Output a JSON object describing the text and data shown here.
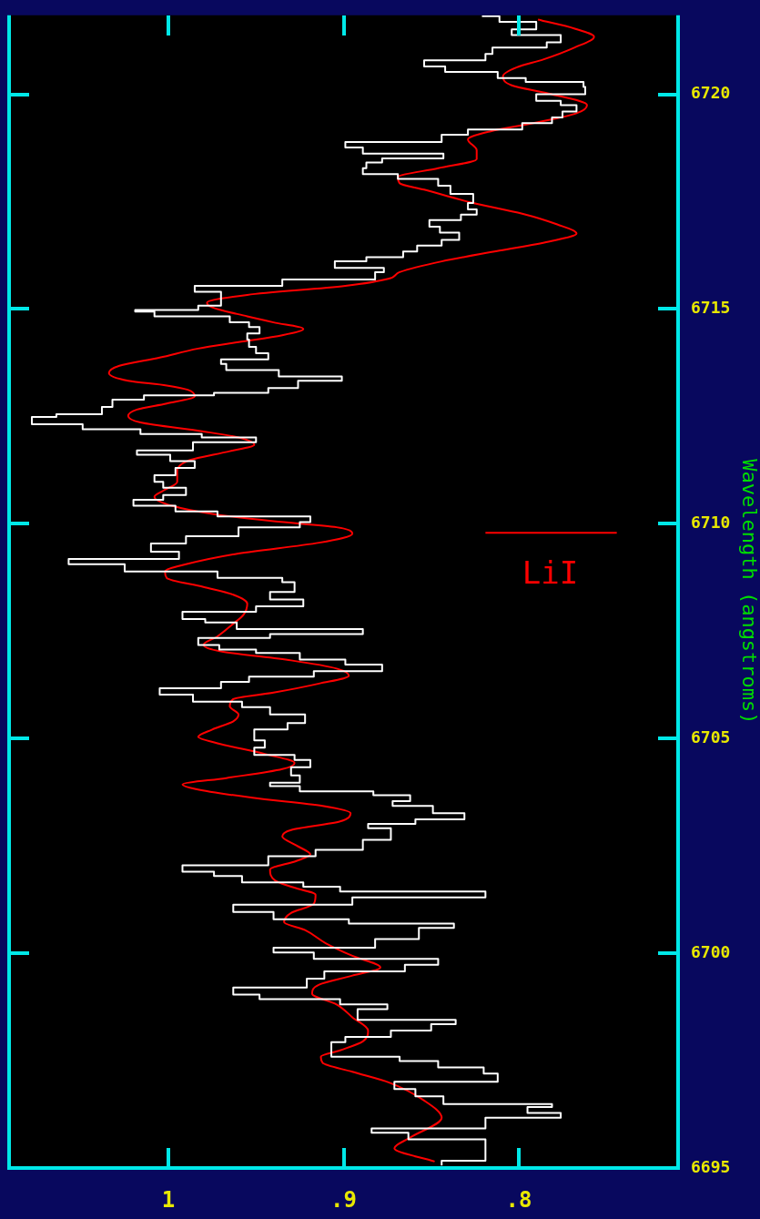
{
  "chart_data": {
    "type": "line",
    "ylabel": "Wavelength (angstroms)",
    "ylim": [
      6695,
      6721.84
    ],
    "yticks": [
      6695,
      6700,
      6705,
      6710,
      6715,
      6720
    ],
    "xlim": [
      1.091,
      0.709
    ],
    "xticks": [
      1,
      {
        "value": 0.9,
        "label": ".9"
      },
      {
        "value": 0.8,
        "label": ".8"
      }
    ],
    "annotations": [
      {
        "text": "LiI",
        "x": 0.782,
        "y": 6709.79
      }
    ],
    "series": [
      {
        "type": "step",
        "color": "#ffffff",
        "values": [
          6695.06,
          6695.17,
          6695.5,
          6695.67,
          6695.82,
          6695.92,
          6696.17,
          6696.28,
          6696.42,
          6696.49,
          6696.67,
          6696.84,
          6697.01,
          6697.2,
          6697.34,
          6697.49,
          6697.59,
          6697.93,
          6698.05,
          6698.2,
          6698.35,
          6698.45,
          6698.7,
          6698.81,
          6698.93,
          6699.04,
          6699.2,
          6699.41,
          6699.58,
          6699.73,
          6699.87,
          6700.02,
          6700.13,
          6700.33,
          6700.59,
          6700.69,
          6700.79,
          6700.96,
          6701.13,
          6701.3,
          6701.44,
          6701.55,
          6701.65,
          6701.8,
          6701.9,
          6702.05,
          6702.26,
          6702.41,
          6702.64,
          6702.91,
          6703.01,
          6703.12,
          6703.26,
          6703.43,
          6703.54,
          6703.68,
          6703.77,
          6703.89,
          6703.97,
          6704.14,
          6704.33,
          6704.5,
          6704.62,
          6704.79,
          6704.96,
          6705.21,
          6705.36,
          6705.56,
          6705.73,
          6705.86,
          6706.02,
          6706.17,
          6706.32,
          6706.44,
          6706.57,
          6706.72,
          6706.84,
          6706.99,
          6707.07,
          6707.18,
          6707.34,
          6707.43,
          6707.55,
          6707.7,
          6707.78,
          6707.95,
          6708.08,
          6708.24,
          6708.41,
          6708.64,
          6708.74,
          6708.89,
          6709.06,
          6709.18,
          6709.35,
          6709.54,
          6709.71,
          6709.92,
          6710.04,
          6710.17,
          6710.29,
          6710.42,
          6710.56,
          6710.67,
          6710.84,
          6710.98,
          6711.13,
          6711.3,
          6711.46,
          6711.61,
          6711.71,
          6711.9,
          6712.01,
          6712.09,
          6712.2,
          6712.32,
          6712.49,
          6712.55,
          6712.72,
          6712.89,
          6712.99,
          6713.05,
          6713.16,
          6713.33,
          6713.43,
          6713.58,
          6713.72,
          6713.83,
          6713.97,
          6714.12,
          6714.29,
          6714.43,
          6714.58,
          6714.69,
          6714.83,
          6714.94,
          6714.98,
          6715.08,
          6715.23,
          6715.4,
          6715.54,
          6715.69,
          6715.86,
          6715.96,
          6716.11,
          6716.21,
          6716.34,
          6716.48,
          6716.61,
          6716.78,
          6716.92,
          6717.07,
          6717.2,
          6717.32,
          6717.47,
          6717.68,
          6717.87,
          6718.03,
          6718.14,
          6718.28,
          6718.41,
          6718.51,
          6718.62,
          6718.76,
          6718.89,
          6719.06,
          6719.18,
          6719.33,
          6719.46,
          6719.6,
          6719.75,
          6719.85,
          6720.0,
          6720.17,
          6720.29,
          6720.38,
          6720.52,
          6720.65,
          6720.79,
          6720.94,
          6721.09,
          6721.21,
          6721.38,
          6721.51,
          6721.69,
          6721.82
        ],
        "x": [
          0.844,
          0.819,
          0.819,
          0.863,
          0.884,
          0.819,
          0.776,
          0.795,
          0.781,
          0.843,
          0.859,
          0.871,
          0.812,
          0.82,
          0.846,
          0.868,
          0.907,
          0.899,
          0.873,
          0.85,
          0.836,
          0.892,
          0.875,
          0.902,
          0.948,
          0.963,
          0.921,
          0.911,
          0.865,
          0.846,
          0.917,
          0.94,
          0.882,
          0.857,
          0.837,
          0.897,
          0.94,
          0.963,
          0.895,
          0.819,
          0.902,
          0.923,
          0.958,
          0.974,
          0.992,
          0.943,
          0.916,
          0.889,
          0.873,
          0.886,
          0.859,
          0.831,
          0.849,
          0.872,
          0.862,
          0.883,
          0.925,
          0.942,
          0.925,
          0.93,
          0.919,
          0.928,
          0.951,
          0.945,
          0.951,
          0.932,
          0.922,
          0.942,
          0.958,
          0.986,
          1.005,
          0.97,
          0.954,
          0.917,
          0.878,
          0.899,
          0.925,
          0.95,
          0.971,
          0.983,
          0.942,
          0.889,
          0.961,
          0.979,
          0.992,
          0.95,
          0.923,
          0.942,
          0.928,
          0.935,
          0.972,
          1.025,
          1.057,
          0.994,
          1.01,
          0.99,
          0.96,
          0.925,
          0.919,
          0.972,
          0.996,
          1.02,
          1.003,
          0.99,
          1.003,
          1.008,
          0.996,
          0.985,
          0.999,
          1.018,
          0.986,
          0.95,
          0.981,
          1.016,
          1.049,
          1.078,
          1.064,
          1.038,
          1.032,
          1.014,
          0.974,
          0.943,
          0.926,
          0.901,
          0.937,
          0.967,
          0.97,
          0.943,
          0.95,
          0.954,
          0.955,
          0.948,
          0.954,
          0.965,
          1.008,
          1.019,
          0.983,
          0.97,
          0.97,
          0.985,
          0.935,
          0.882,
          0.877,
          0.905,
          0.887,
          0.866,
          0.858,
          0.844,
          0.834,
          0.845,
          0.851,
          0.833,
          0.824,
          0.829,
          0.826,
          0.839,
          0.846,
          0.869,
          0.889,
          0.887,
          0.878,
          0.843,
          0.889,
          0.899,
          0.844,
          0.829,
          0.798,
          0.781,
          0.775,
          0.767,
          0.776,
          0.79,
          0.762,
          0.763,
          0.796,
          0.812,
          0.842,
          0.854,
          0.819,
          0.815,
          0.784,
          0.776,
          0.804,
          0.79,
          0.811,
          0.821
        ]
      },
      {
        "type": "line",
        "color": "#ff0000",
        "values": [
          6695.15,
          6695.46,
          6695.71,
          6696.17,
          6696.57,
          6696.99,
          6697.24,
          6697.45,
          6697.59,
          6697.74,
          6697.95,
          6698.2,
          6698.51,
          6698.81,
          6699.06,
          6699.27,
          6699.48,
          6699.67,
          6699.94,
          6700.23,
          6700.54,
          6700.73,
          6700.94,
          6701.15,
          6701.36,
          6701.55,
          6701.69,
          6701.95,
          6702.15,
          6702.3,
          6702.51,
          6702.72,
          6702.87,
          6703.07,
          6703.26,
          6703.43,
          6703.62,
          6703.83,
          6703.93,
          6704.08,
          6704.29,
          6704.43,
          6704.64,
          6704.89,
          6705.04,
          6705.21,
          6705.4,
          6705.56,
          6705.75,
          6705.92,
          6706.07,
          6706.28,
          6706.46,
          6706.63,
          6706.82,
          6707.03,
          6707.18,
          6707.38,
          6707.64,
          6707.89,
          6708.14,
          6708.35,
          6708.53,
          6708.74,
          6708.89,
          6709.06,
          6709.31,
          6709.56,
          6709.77,
          6709.92,
          6710.06,
          6710.23,
          6710.42,
          6710.63,
          6710.77,
          6710.98,
          6711.23,
          6711.48,
          6711.69,
          6711.84,
          6712.01,
          6712.15,
          6712.36,
          6712.51,
          6712.66,
          6712.8,
          6712.97,
          6713.12,
          6713.22,
          6713.33,
          6713.51,
          6713.68,
          6713.87,
          6714.08,
          6714.23,
          6714.39,
          6714.54,
          6714.69,
          6714.83,
          6715.04,
          6715.15,
          6715.33,
          6715.54,
          6715.71,
          6715.86,
          6716.11,
          6716.36,
          6716.57,
          6716.76,
          6716.97,
          6717.22,
          6717.47,
          6717.78,
          6717.93,
          6718.07,
          6718.28,
          6718.49,
          6718.7,
          6718.95,
          6719.14,
          6719.35,
          6719.56,
          6719.75,
          6720.02,
          6720.21,
          6720.42,
          6720.63,
          6720.81,
          6721.09,
          6721.34,
          6721.53,
          6721.74
        ],
        "x": [
          0.848,
          0.871,
          0.862,
          0.844,
          0.854,
          0.874,
          0.895,
          0.912,
          0.913,
          0.902,
          0.889,
          0.886,
          0.895,
          0.904,
          0.918,
          0.914,
          0.895,
          0.879,
          0.895,
          0.91,
          0.922,
          0.934,
          0.93,
          0.917,
          0.916,
          0.93,
          0.939,
          0.942,
          0.927,
          0.919,
          0.927,
          0.935,
          0.93,
          0.902,
          0.896,
          0.912,
          0.952,
          0.985,
          0.992,
          0.967,
          0.935,
          0.928,
          0.945,
          0.972,
          0.983,
          0.975,
          0.963,
          0.96,
          0.965,
          0.963,
          0.94,
          0.914,
          0.897,
          0.904,
          0.93,
          0.97,
          0.98,
          0.972,
          0.964,
          0.957,
          0.955,
          0.963,
          0.98,
          1.001,
          1.002,
          0.99,
          0.96,
          0.914,
          0.895,
          0.904,
          0.94,
          0.975,
          0.998,
          1.008,
          1.003,
          0.995,
          0.995,
          0.988,
          0.965,
          0.951,
          0.96,
          0.98,
          1.016,
          1.023,
          1.018,
          1.001,
          0.985,
          0.989,
          1.001,
          1.023,
          1.034,
          1.028,
          1.005,
          0.983,
          0.96,
          0.935,
          0.923,
          0.94,
          0.955,
          0.975,
          0.978,
          0.955,
          0.899,
          0.874,
          0.868,
          0.844,
          0.811,
          0.783,
          0.767,
          0.778,
          0.798,
          0.826,
          0.854,
          0.868,
          0.869,
          0.846,
          0.824,
          0.824,
          0.829,
          0.816,
          0.789,
          0.767,
          0.761,
          0.783,
          0.804,
          0.809,
          0.801,
          0.786,
          0.768,
          0.757,
          0.768,
          0.789
        ]
      },
      {
        "type": "line",
        "color": "#ff0000",
        "x": [
          0.819,
          0.744
        ],
        "values": [
          6709.79,
          6709.79
        ]
      }
    ]
  }
}
